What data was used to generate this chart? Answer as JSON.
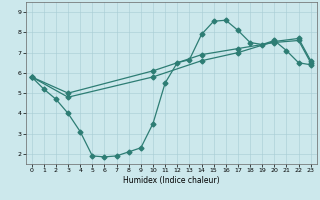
{
  "xlabel": "Humidex (Indice chaleur)",
  "xlim": [
    -0.5,
    23.5
  ],
  "ylim": [
    1.5,
    9.5
  ],
  "xticks": [
    0,
    1,
    2,
    3,
    4,
    5,
    6,
    7,
    8,
    9,
    10,
    11,
    12,
    13,
    14,
    15,
    16,
    17,
    18,
    19,
    20,
    21,
    22,
    23
  ],
  "yticks": [
    2,
    3,
    4,
    5,
    6,
    7,
    8,
    9
  ],
  "bg_color": "#cce8ec",
  "line_color": "#2d7d74",
  "line1_x": [
    0,
    1,
    2,
    3,
    4,
    5,
    6,
    7,
    8,
    9,
    10,
    11,
    12,
    13,
    14,
    15,
    16,
    17,
    18,
    19,
    20,
    21,
    22,
    23
  ],
  "line1_y": [
    5.8,
    5.2,
    4.7,
    4.0,
    3.1,
    1.9,
    1.85,
    1.9,
    2.1,
    2.3,
    3.5,
    5.5,
    6.5,
    6.65,
    7.9,
    8.55,
    8.6,
    8.1,
    7.5,
    7.4,
    7.6,
    7.1,
    6.5,
    6.4
  ],
  "line2_x": [
    0,
    3,
    10,
    14,
    17,
    20,
    22,
    23
  ],
  "line2_y": [
    5.8,
    5.0,
    6.1,
    6.9,
    7.2,
    7.5,
    7.6,
    6.5
  ],
  "line3_x": [
    0,
    3,
    10,
    14,
    17,
    20,
    22,
    23
  ],
  "line3_y": [
    5.8,
    4.8,
    5.8,
    6.6,
    7.0,
    7.55,
    7.7,
    6.6
  ],
  "marker": "D",
  "markersize": 2.5,
  "linewidth": 0.9
}
